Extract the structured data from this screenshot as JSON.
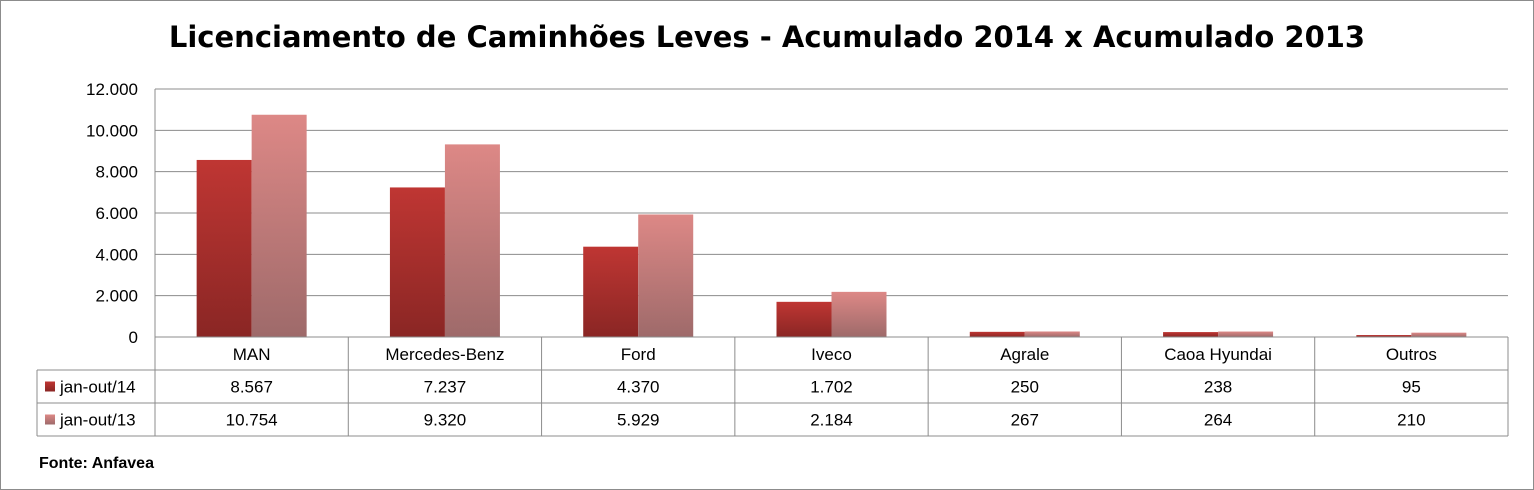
{
  "chart_data": {
    "type": "bar",
    "title": "Licenciamento de Caminhões Leves - Acumulado 2014 x Acumulado 2013",
    "categories": [
      "MAN",
      "Mercedes-Benz",
      "Ford",
      "Iveco",
      "Agrale",
      "Caoa Hyundai",
      "Outros"
    ],
    "series": [
      {
        "name": "jan-out/14",
        "values": [
          8567,
          7237,
          4370,
          1702,
          250,
          238,
          95
        ],
        "display": [
          "8.567",
          "7.237",
          "4.370",
          "1.702",
          "250",
          "238",
          "95"
        ],
        "color": "#b2302e"
      },
      {
        "name": "jan-out/13",
        "values": [
          10754,
          9320,
          5929,
          2184,
          267,
          264,
          210
        ],
        "display": [
          "10.754",
          "9.320",
          "5.929",
          "2.184",
          "267",
          "264",
          "210"
        ],
        "color": "#d48684"
      }
    ],
    "ylim": [
      0,
      12000
    ],
    "yticks": [
      {
        "value": 0,
        "label": "0"
      },
      {
        "value": 2000,
        "label": "2.000"
      },
      {
        "value": 4000,
        "label": "4.000"
      },
      {
        "value": 6000,
        "label": "6.000"
      },
      {
        "value": 8000,
        "label": "8.000"
      },
      {
        "value": 10000,
        "label": "10.000"
      },
      {
        "value": 12000,
        "label": "12.000"
      }
    ],
    "grid": true,
    "legend": "data-table"
  },
  "source": "Fonte: Anfavea"
}
